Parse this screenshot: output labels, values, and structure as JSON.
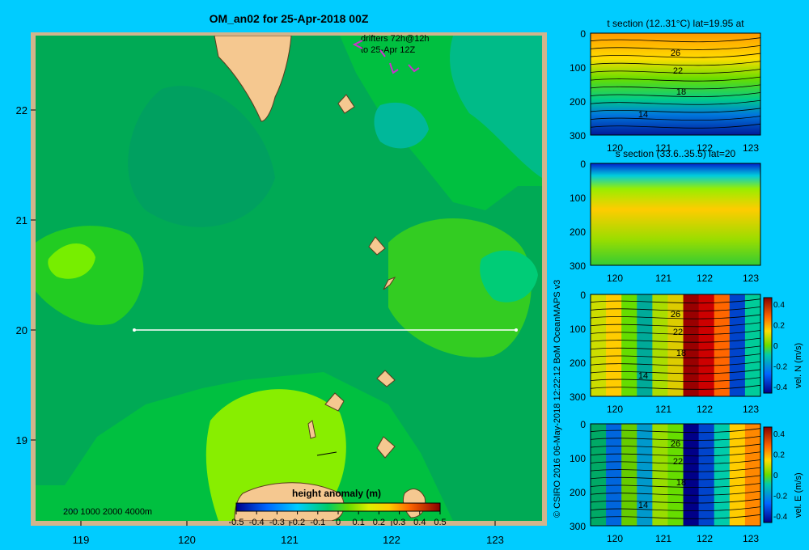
{
  "title": "OM_an02 for 25-Apr-2018 00Z",
  "drifters_note": [
    "drifters 72h@12h",
    "to 25-Apr 12Z"
  ],
  "copyright": "© CSIRO 2016   06-May-2018 12:22:12 BoM OceanMAPS v3",
  "map": {
    "lat_ticks": [
      "22",
      "21",
      "20",
      "19"
    ],
    "lon_ticks": [
      "119",
      "120",
      "121",
      "122",
      "123"
    ],
    "bathy_legend": "200  1000  2000  4000m",
    "section_lat": "20"
  },
  "colorbar": {
    "title": "height anomaly  (m)",
    "labels": [
      "-0.5",
      "-0.4",
      "-0.3",
      "-0.2",
      "-0.1",
      "0",
      "0.1",
      "0.2",
      "0.3",
      "0.4",
      "0.5"
    ],
    "colors": [
      "#00008b",
      "#0033cc",
      "#0088ee",
      "#00bbdd",
      "#33dd66",
      "#44cc33",
      "#ccee00",
      "#ffdd00",
      "#ff8800",
      "#dd3300",
      "#990000"
    ]
  },
  "panels": [
    {
      "title": "t section (12..31°C) lat=19.95 at",
      "y_ticks": [
        "0",
        "100",
        "200",
        "300"
      ],
      "x_ticks": [
        "120",
        "121",
        "122",
        "123"
      ],
      "contour_labels": [
        "26",
        "22",
        "18",
        "14"
      ],
      "side_ticks": [],
      "side_label": ""
    },
    {
      "title": "s section (33.6..35.5) lat=20",
      "y_ticks": [
        "0",
        "100",
        "200",
        "300"
      ],
      "x_ticks": [
        "120",
        "121",
        "122",
        "123"
      ],
      "contour_labels": [],
      "side_ticks": [],
      "side_label": ""
    },
    {
      "title": "",
      "y_ticks": [
        "0",
        "100",
        "200",
        "300"
      ],
      "x_ticks": [
        "120",
        "121",
        "122",
        "123"
      ],
      "contour_labels": [
        "26",
        "22",
        "18",
        "14"
      ],
      "side_ticks": [
        "0.4",
        "0.2",
        "0",
        "-0.2",
        "-0.4"
      ],
      "side_label": "vel. N (m/s)"
    },
    {
      "title": "",
      "y_ticks": [
        "0",
        "100",
        "200",
        "300"
      ],
      "x_ticks": [
        "120",
        "121",
        "122",
        "123"
      ],
      "contour_labels": [
        "26",
        "22",
        "18",
        "14"
      ],
      "side_ticks": [
        "0.4",
        "0.2",
        "0",
        "-0.2",
        "-0.4"
      ],
      "side_label": "vel. E (m/s)"
    }
  ]
}
